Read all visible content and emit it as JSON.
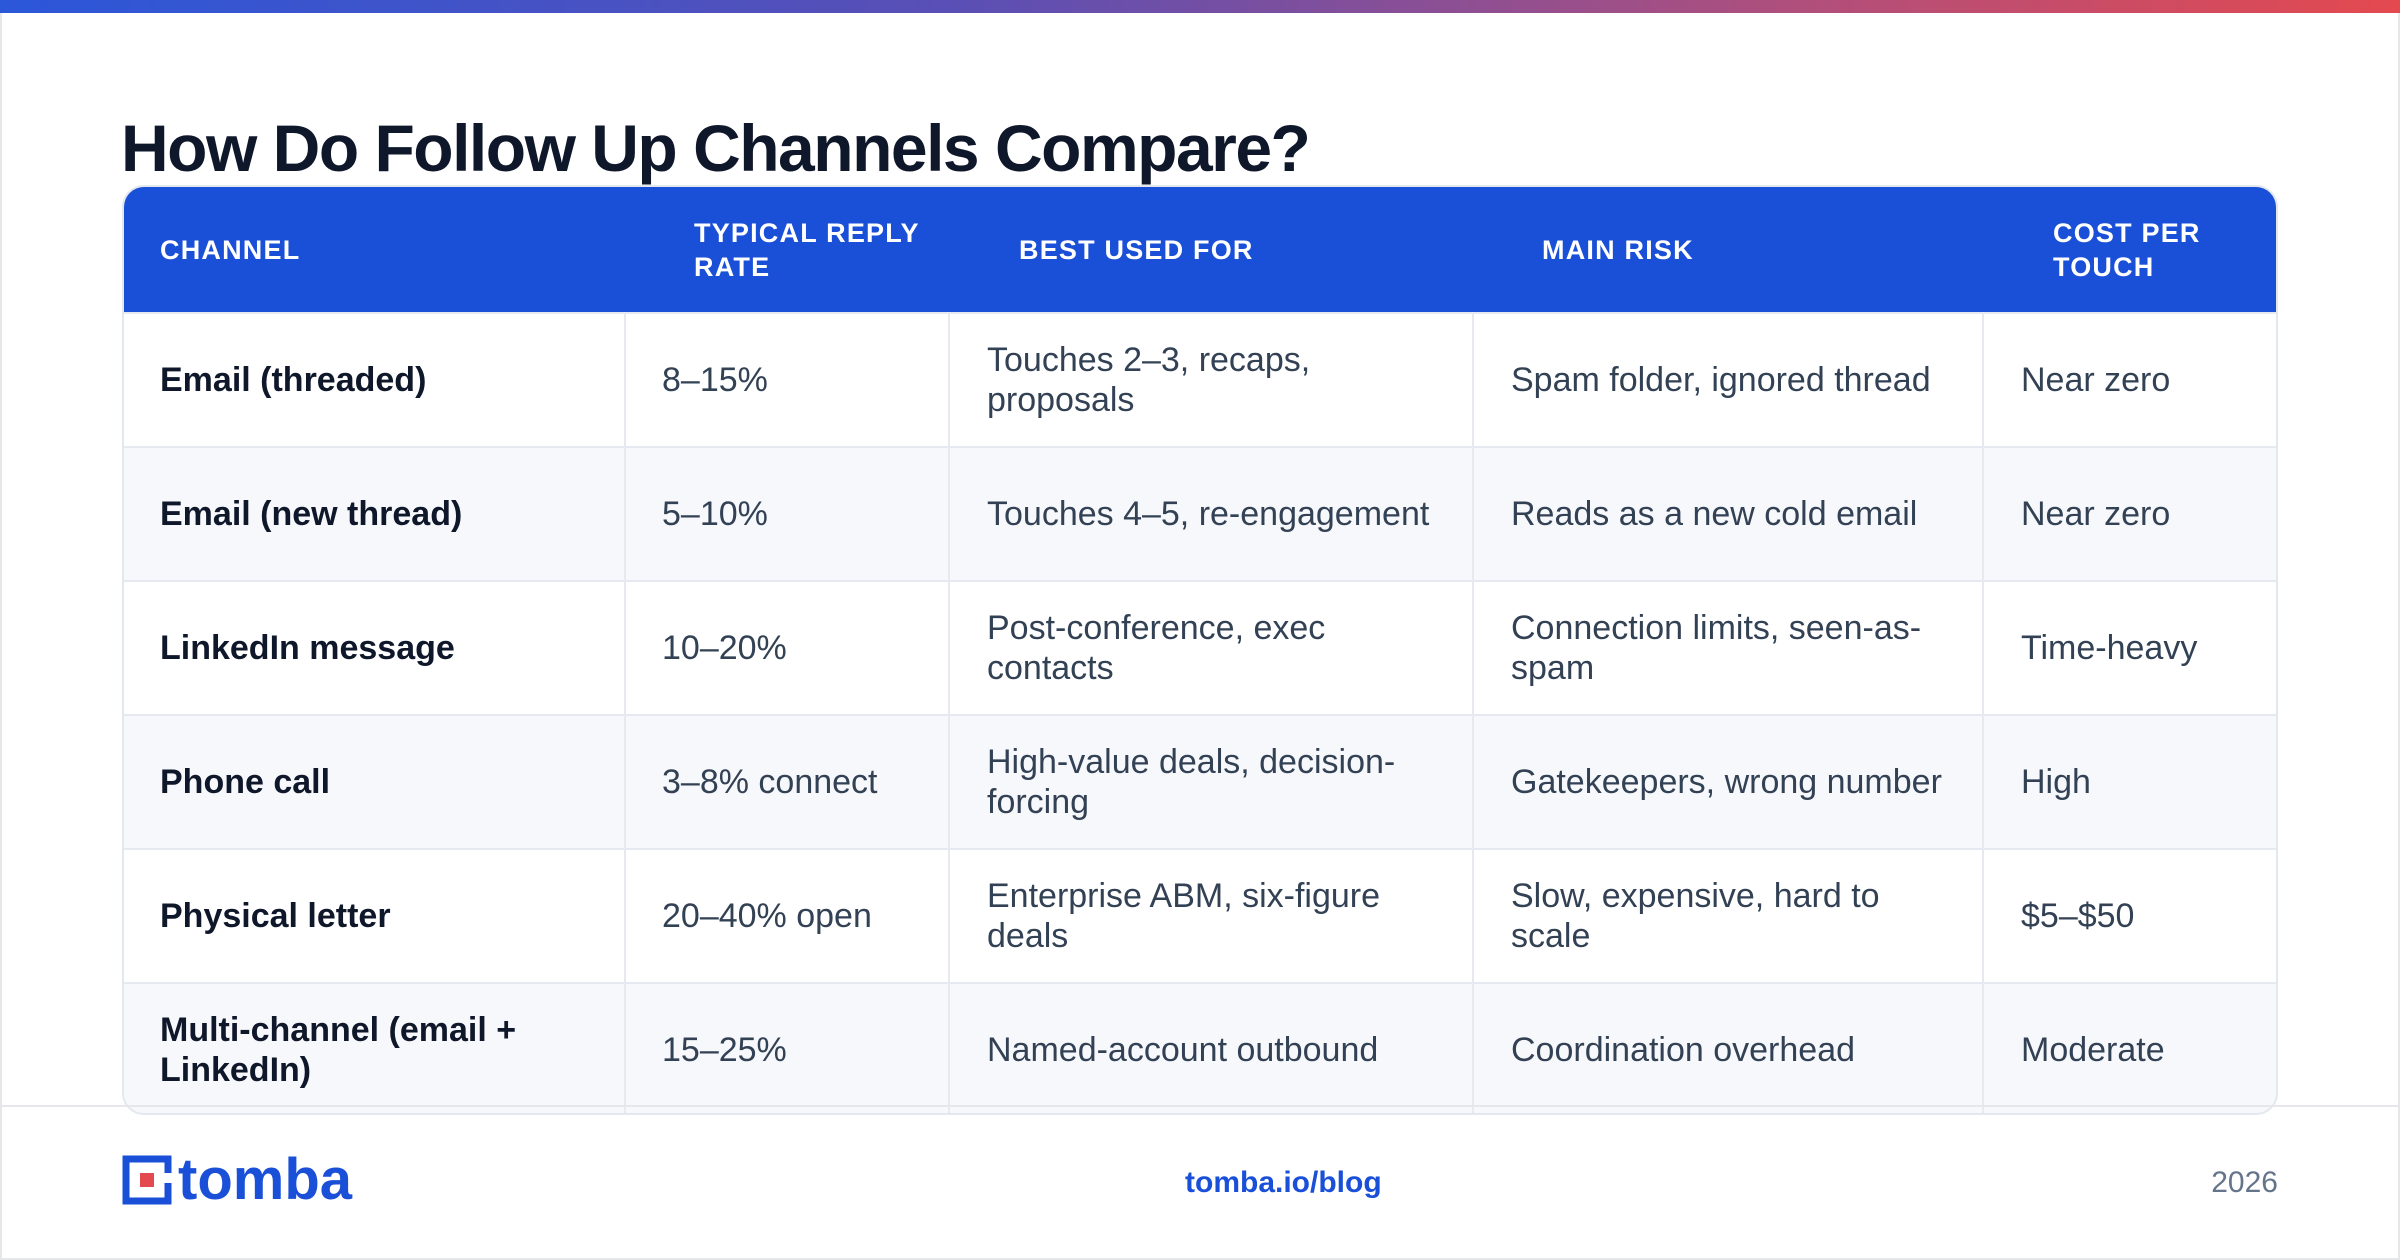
{
  "title": "How Do Follow Up Channels Compare?",
  "colors": {
    "accent": "#1a4fd8",
    "logo_red": "#e4494f",
    "header_text": "#ffffff"
  },
  "table": {
    "headers": [
      "CHANNEL",
      "TYPICAL REPLY RATE",
      "BEST USED FOR",
      "MAIN RISK",
      "COST PER TOUCH"
    ],
    "rows": [
      [
        "Email (threaded)",
        "8–15%",
        "Touches 2–3, recaps, proposals",
        "Spam folder, ignored thread",
        "Near zero"
      ],
      [
        "Email (new thread)",
        "5–10%",
        "Touches 4–5, re-engagement",
        "Reads as a new cold email",
        "Near zero"
      ],
      [
        "LinkedIn message",
        "10–20%",
        "Post-conference, exec contacts",
        "Connection limits, seen-as-spam",
        "Time-heavy"
      ],
      [
        "Phone call",
        "3–8% connect",
        "High-value deals, decision-forcing",
        "Gatekeepers, wrong number",
        "High"
      ],
      [
        "Physical letter",
        "20–40% open",
        "Enterprise ABM, six-figure deals",
        "Slow, expensive, hard to scale",
        "$5–$50"
      ],
      [
        "Multi-channel (email + LinkedIn)",
        "15–25%",
        "Named-account outbound",
        "Coordination overhead",
        "Moderate"
      ]
    ]
  },
  "footer": {
    "brand": "tomba",
    "logo_icon": "tomba-logo-icon",
    "link": "tomba.io/blog",
    "year": "2026"
  }
}
